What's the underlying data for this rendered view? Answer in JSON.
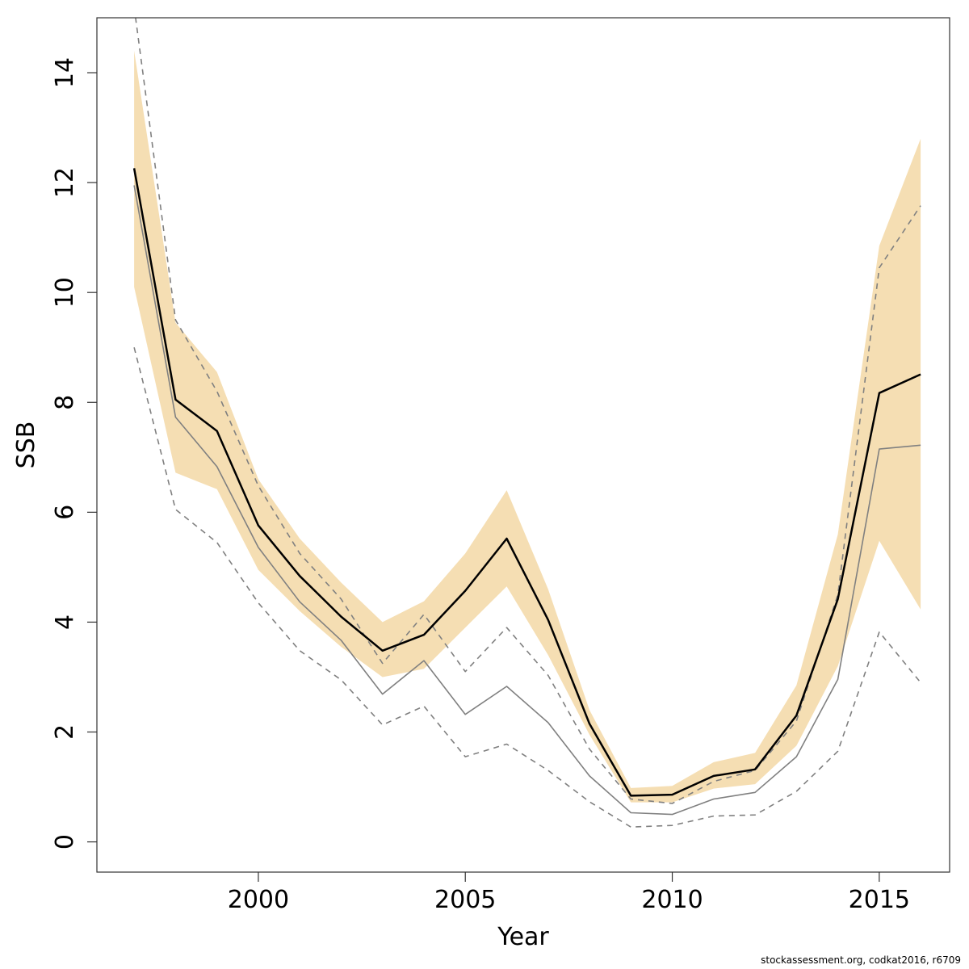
{
  "chart_data": {
    "type": "line",
    "xlabel": "Year",
    "ylabel": "SSB",
    "xlim": [
      1996.1,
      2016.7
    ],
    "ylim": [
      -0.55,
      15.0
    ],
    "x_ticks": [
      2000,
      2005,
      2010,
      2015
    ],
    "y_ticks": [
      0,
      2,
      4,
      6,
      8,
      10,
      12,
      14
    ],
    "x": [
      1997,
      1998,
      1999,
      2000,
      2001,
      2002,
      2003,
      2004,
      2005,
      2006,
      2007,
      2008,
      2009,
      2010,
      2011,
      2012,
      2013,
      2014,
      2015,
      2016
    ],
    "band": {
      "color": "#f5deb3",
      "lower": [
        10.1,
        6.72,
        6.42,
        4.95,
        4.2,
        3.55,
        3.0,
        3.15,
        3.9,
        4.65,
        3.4,
        1.95,
        0.72,
        0.72,
        0.97,
        1.05,
        1.75,
        3.2,
        5.48,
        4.23
      ],
      "upper": [
        14.4,
        9.45,
        8.55,
        6.6,
        5.52,
        4.72,
        4.0,
        4.38,
        5.25,
        6.4,
        4.6,
        2.4,
        0.98,
        1.02,
        1.45,
        1.62,
        2.85,
        5.6,
        10.85,
        12.8
      ]
    },
    "series": [
      {
        "values": [
          12.26,
          8.05,
          7.48,
          5.76,
          4.84,
          4.1,
          3.48,
          3.77,
          4.57,
          5.52,
          4.04,
          2.15,
          0.84,
          0.86,
          1.2,
          1.32,
          2.3,
          4.42,
          8.17,
          8.51
        ],
        "color": "#000000",
        "width": 2.5,
        "dash": ""
      },
      {
        "values": [
          11.95,
          7.73,
          6.83,
          5.36,
          4.37,
          3.67,
          2.69,
          3.3,
          2.32,
          2.83,
          2.17,
          1.2,
          0.53,
          0.5,
          0.78,
          0.9,
          1.55,
          2.96,
          7.15,
          7.22
        ],
        "color": "#808080",
        "width": 1.6,
        "dash": ""
      },
      {
        "values": [
          15.2,
          9.5,
          8.2,
          6.48,
          5.25,
          4.42,
          3.25,
          4.14,
          3.1,
          3.9,
          3.03,
          1.69,
          0.78,
          0.7,
          1.1,
          1.3,
          2.2,
          4.5,
          10.45,
          11.58
        ],
        "color": "#808080",
        "width": 1.6,
        "dash": "7,6"
      },
      {
        "values": [
          9.0,
          6.05,
          5.45,
          4.35,
          3.48,
          2.95,
          2.13,
          2.47,
          1.55,
          1.78,
          1.3,
          0.73,
          0.27,
          0.3,
          0.47,
          0.49,
          0.92,
          1.65,
          3.82,
          2.9
        ],
        "color": "#808080",
        "width": 1.6,
        "dash": "7,6"
      }
    ]
  },
  "footer": "stockassessment.org, codkat2016, r6709"
}
